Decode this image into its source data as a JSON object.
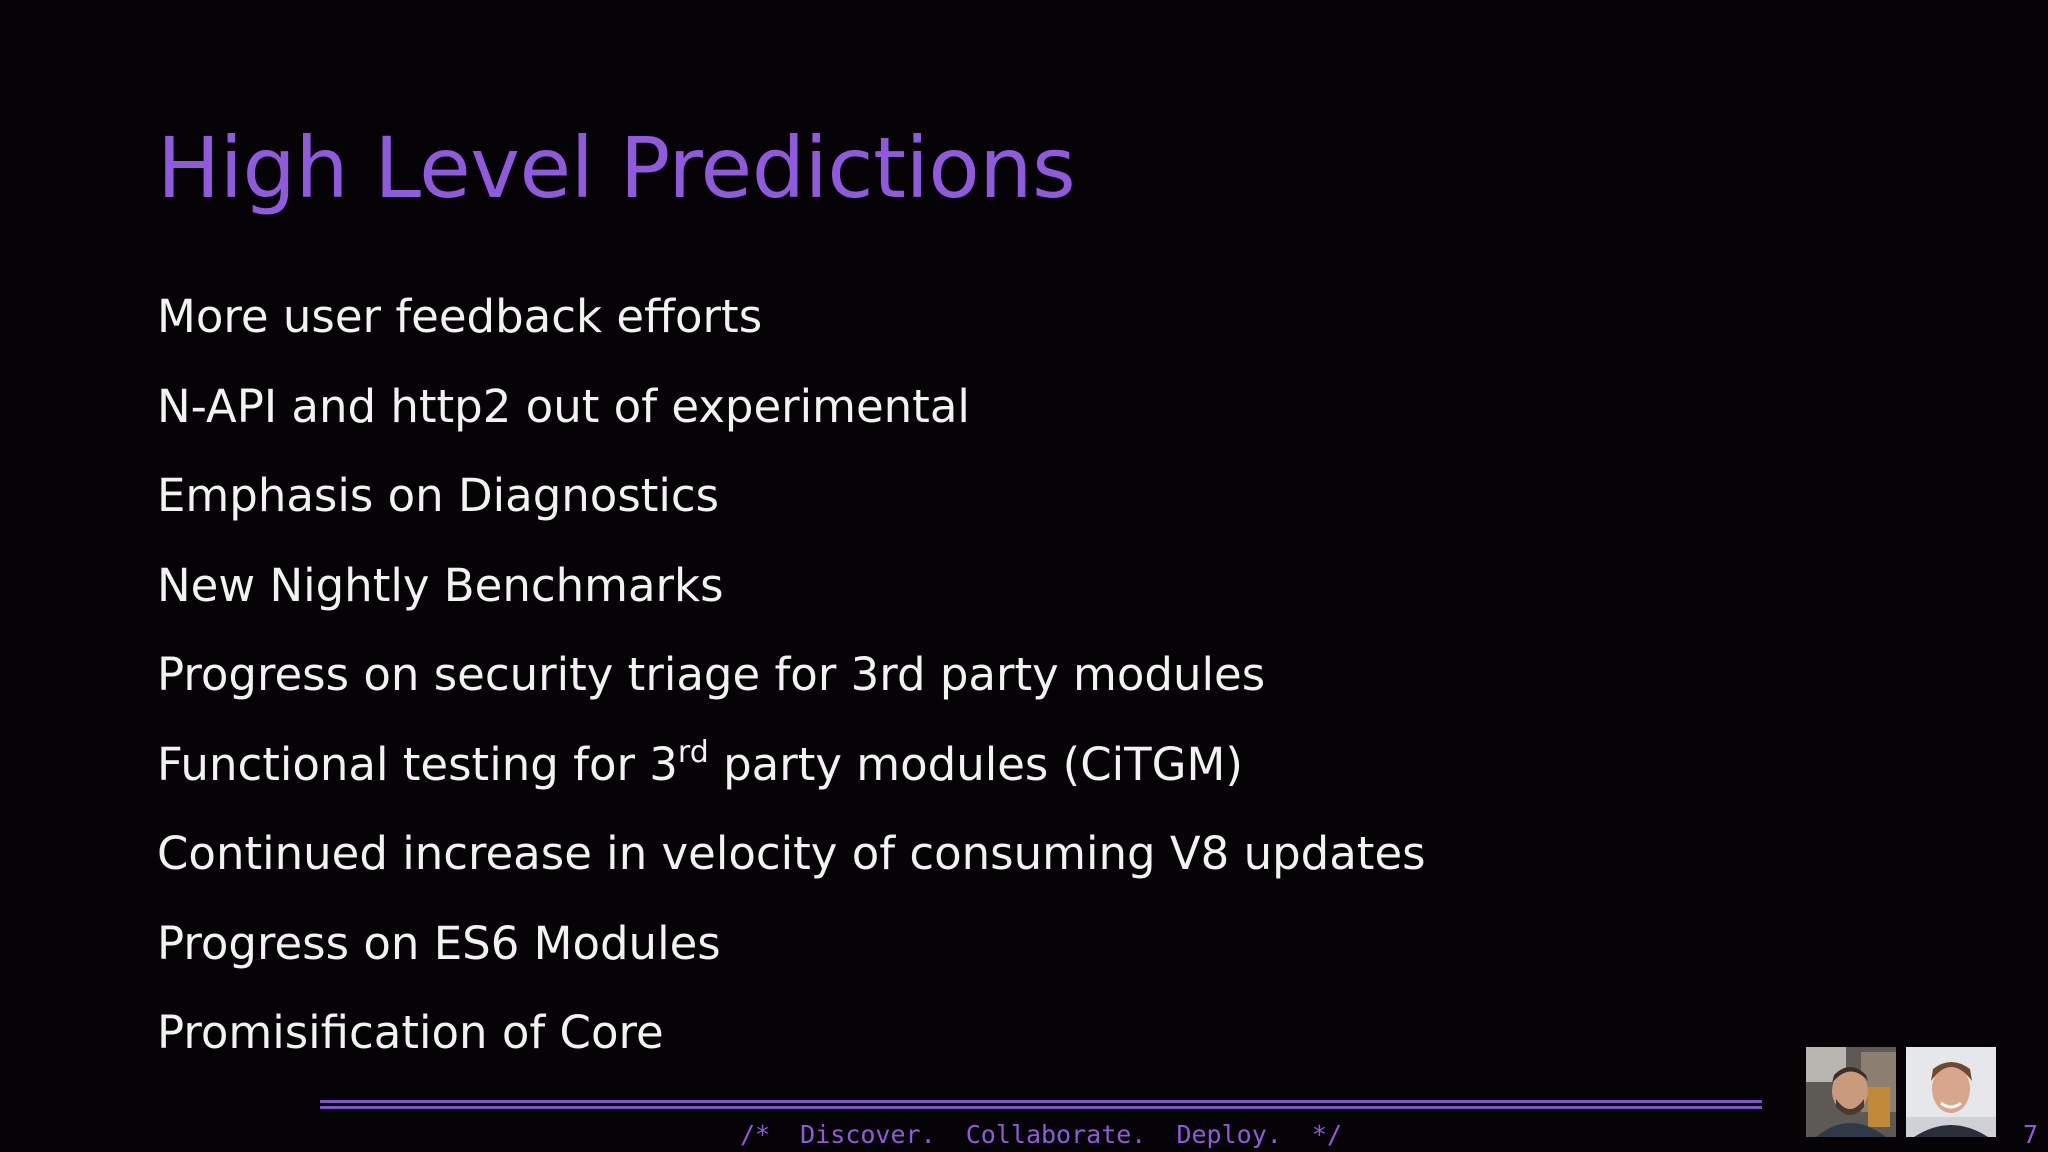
{
  "slide": {
    "title": "High Level Predictions",
    "bullets": [
      {
        "text": "More user feedback efforts"
      },
      {
        "text": "N-API and http2 out of experimental"
      },
      {
        "text": "Emphasis on Diagnostics"
      },
      {
        "text": "New Nightly Benchmarks"
      },
      {
        "text": "Progress on security triage for 3rd party modules"
      },
      {
        "pre": "Functional testing for 3",
        "sup": "rd",
        "post": " party modules (CiTGM)"
      },
      {
        "text": "Continued increase in velocity of consuming V8 updates"
      },
      {
        "text": "Progress on ES6 Modules"
      },
      {
        "text": "Promisification of Core"
      }
    ],
    "footer": "/*  Discover.  Collaborate.  Deploy.  */",
    "page_number": "7"
  },
  "participants": [
    {
      "icon": "presenter-avatar-icon"
    },
    {
      "icon": "presenter-avatar-icon"
    }
  ],
  "colors": {
    "accent": "#8f5bdc",
    "text": "#f2f2f2",
    "background": "#050305"
  }
}
